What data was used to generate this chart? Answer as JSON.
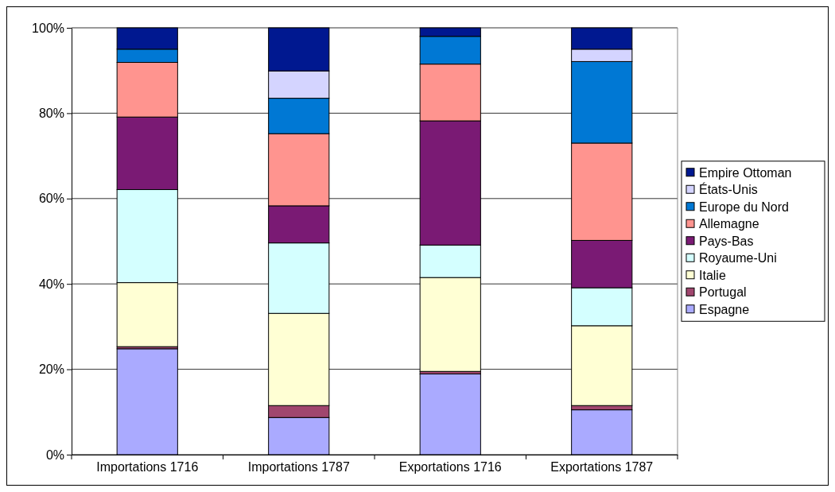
{
  "chart_data": {
    "type": "bar",
    "stacked": true,
    "categories": [
      "Importations 1716",
      "Importations 1787",
      "Exportations 1716",
      "Exportations 1787"
    ],
    "series": [
      {
        "name": "Espagne",
        "color": "#aaaaff",
        "values": [
          24.8,
          8.7,
          18.9,
          10.5
        ]
      },
      {
        "name": "Portugal",
        "color": "#a0466e",
        "values": [
          0.5,
          2.8,
          0.6,
          1.0
        ]
      },
      {
        "name": "Italie",
        "color": "#ffffd4",
        "values": [
          15.0,
          21.6,
          22.0,
          18.7
        ]
      },
      {
        "name": "Royaume-Uni",
        "color": "#d4ffff",
        "values": [
          21.8,
          16.5,
          7.6,
          8.9
        ]
      },
      {
        "name": "Pays-Bas",
        "color": "#7a1a74",
        "values": [
          17.0,
          8.7,
          29.1,
          11.1
        ]
      },
      {
        "name": "Allemagne",
        "color": "#ff948f",
        "values": [
          12.8,
          16.9,
          13.3,
          22.8
        ]
      },
      {
        "name": "Europe du Nord",
        "color": "#0078d4",
        "values": [
          3.1,
          8.3,
          6.5,
          19.1
        ]
      },
      {
        "name": "États-Unis",
        "color": "#d4d4ff",
        "values": [
          0,
          6.4,
          0,
          2.9
        ]
      },
      {
        "name": "Empire Ottoman",
        "color": "#001890",
        "values": [
          5.0,
          10.1,
          2.0,
          5.0
        ]
      }
    ],
    "ylim": [
      0,
      100
    ],
    "yticks": [
      {
        "value": 0,
        "label": "0%"
      },
      {
        "value": 20,
        "label": "20%"
      },
      {
        "value": 40,
        "label": "40%"
      },
      {
        "value": 60,
        "label": "60%"
      },
      {
        "value": 80,
        "label": "80%"
      },
      {
        "value": 100,
        "label": "100%"
      }
    ],
    "grid": "y",
    "legend": "right"
  }
}
